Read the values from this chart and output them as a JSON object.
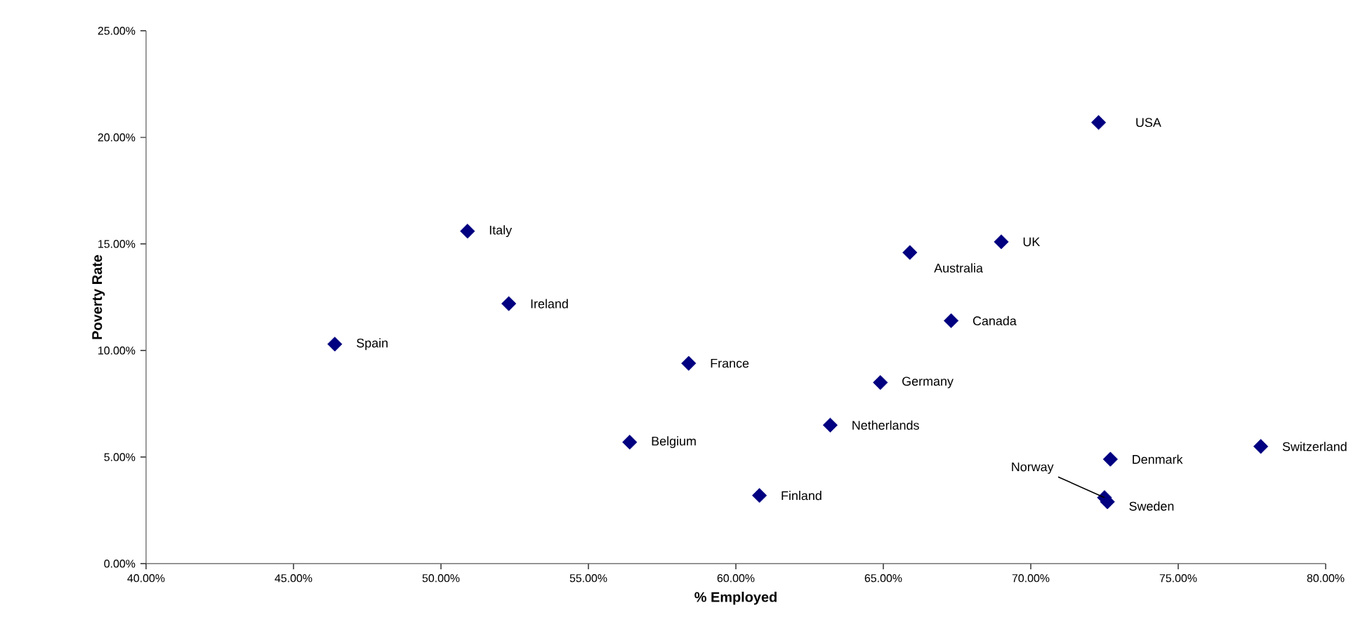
{
  "chart_data": {
    "type": "scatter",
    "xlabel": "% Employed",
    "ylabel": "Poverty Rate",
    "color": "#000080",
    "marker": "diamond",
    "x": [
      46.4,
      50.9,
      52.3,
      56.4,
      58.4,
      60.8,
      63.2,
      64.9,
      65.9,
      67.3,
      69.0,
      72.3,
      72.7,
      72.5,
      72.6,
      77.8
    ],
    "values": [
      10.3,
      15.6,
      12.2,
      5.7,
      9.4,
      3.2,
      6.5,
      8.5,
      14.6,
      11.4,
      15.1,
      20.7,
      4.9,
      3.1,
      2.9,
      5.5
    ],
    "xlim": [
      40,
      80
    ],
    "ylim": [
      0,
      25
    ],
    "xticks": [
      {
        "value": 40,
        "label": "40.00%"
      },
      {
        "value": 45,
        "label": "45.00%"
      },
      {
        "value": 50,
        "label": "50.00%"
      },
      {
        "value": 55,
        "label": "55.00%"
      },
      {
        "value": 60,
        "label": "60.00%"
      },
      {
        "value": 65,
        "label": "65.00%"
      },
      {
        "value": 70,
        "label": "70.00%"
      },
      {
        "value": 75,
        "label": "75.00%"
      },
      {
        "value": 80,
        "label": "80.00%"
      }
    ],
    "yticks": [
      {
        "value": 0,
        "label": "0.00%"
      },
      {
        "value": 5,
        "label": "5.00%"
      },
      {
        "value": 10,
        "label": "10.00%"
      },
      {
        "value": 15,
        "label": "15.00%"
      },
      {
        "value": 20,
        "label": "20.00%"
      },
      {
        "value": 25,
        "label": "25.00%"
      }
    ],
    "annotations": [
      {
        "text": "Spain",
        "x": 46.4,
        "y": 10.3
      },
      {
        "text": "Italy",
        "x": 50.9,
        "y": 15.6
      },
      {
        "text": "Ireland",
        "x": 52.3,
        "y": 12.2
      },
      {
        "text": "Belgium",
        "x": 56.4,
        "y": 5.7
      },
      {
        "text": "France",
        "x": 58.4,
        "y": 9.4
      },
      {
        "text": "Finland",
        "x": 60.8,
        "y": 3.2
      },
      {
        "text": "Netherlands",
        "x": 63.2,
        "y": 6.5
      },
      {
        "text": "Germany",
        "x": 64.9,
        "y": 8.5
      },
      {
        "text": "Australia",
        "x": 65.9,
        "y": 14.6
      },
      {
        "text": "Canada",
        "x": 67.3,
        "y": 11.4
      },
      {
        "text": "UK",
        "x": 69.0,
        "y": 15.1
      },
      {
        "text": "USA",
        "x": 72.3,
        "y": 20.7
      },
      {
        "text": "Denmark",
        "x": 72.7,
        "y": 4.9
      },
      {
        "text": "Norway",
        "x": 72.5,
        "y": 3.1
      },
      {
        "text": "Sweden",
        "x": 72.6,
        "y": 2.9
      },
      {
        "text": "Switzerland",
        "x": 77.8,
        "y": 5.5
      }
    ]
  }
}
